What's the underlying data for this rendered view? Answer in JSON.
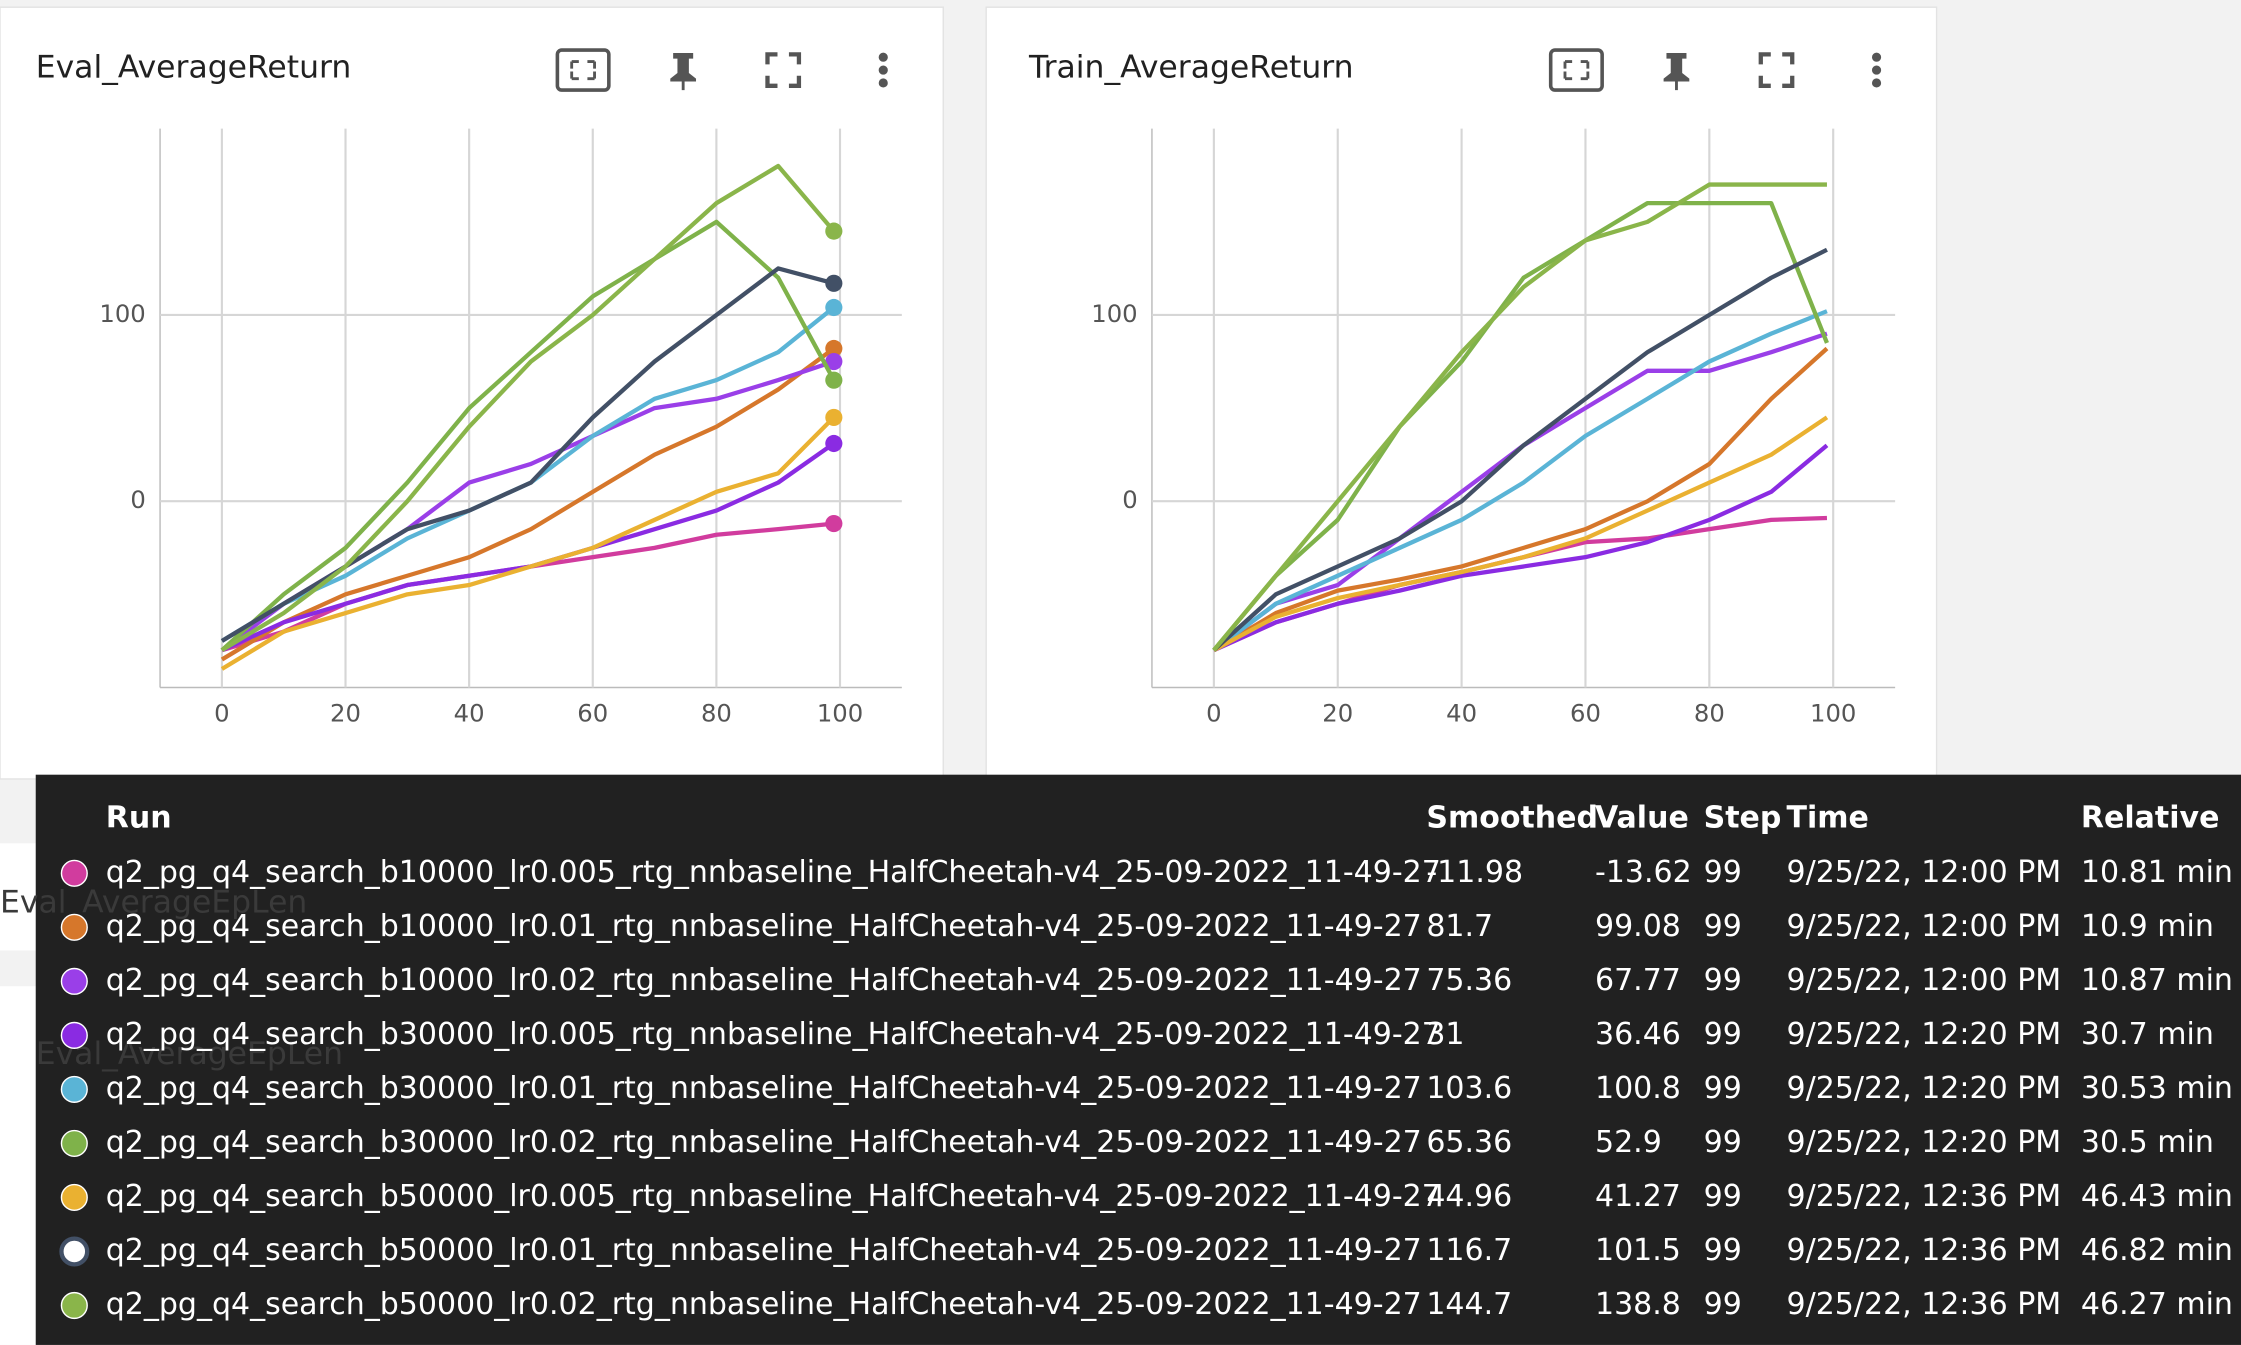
{
  "chart_data": [
    {
      "type": "line",
      "title": "Eval_AverageReturn",
      "x": [
        0,
        10,
        20,
        30,
        40,
        50,
        60,
        70,
        80,
        90,
        99
      ],
      "xlim": [
        -10,
        110
      ],
      "xticks": [
        0,
        20,
        40,
        60,
        80,
        100
      ],
      "ylim": [
        -100,
        200
      ],
      "yticks": [
        0,
        100
      ],
      "grid": true,
      "end_markers": true,
      "series": [
        {
          "name": "q2_pg_q4_search_b10000_lr0.005_rtg_nnbaseline_HalfCheetah-v4_25-09-2022_11-49-27",
          "color": "#d13c9e",
          "values": [
            -80,
            -70,
            -55,
            -45,
            -40,
            -35,
            -30,
            -25,
            -18,
            -15,
            -12
          ]
        },
        {
          "name": "q2_pg_q4_search_b10000_lr0.01_rtg_nnbaseline_HalfCheetah-v4_25-09-2022_11-49-27",
          "color": "#d6772b",
          "values": [
            -85,
            -65,
            -50,
            -40,
            -30,
            -15,
            5,
            25,
            40,
            60,
            82
          ]
        },
        {
          "name": "q2_pg_q4_search_b10000_lr0.02_rtg_nnbaseline_HalfCheetah-v4_25-09-2022_11-49-27",
          "color": "#9a3fe8",
          "values": [
            -80,
            -55,
            -35,
            -15,
            10,
            20,
            35,
            50,
            55,
            65,
            75
          ]
        },
        {
          "name": "q2_pg_q4_search_b30000_lr0.005_rtg_nnbaseline_HalfCheetah-v4_25-09-2022_11-49-27",
          "color": "#8a2be2",
          "values": [
            -80,
            -65,
            -55,
            -45,
            -40,
            -35,
            -25,
            -15,
            -5,
            10,
            31
          ]
        },
        {
          "name": "q2_pg_q4_search_b30000_lr0.01_rtg_nnbaseline_HalfCheetah-v4_25-09-2022_11-49-27",
          "color": "#5ab4d6",
          "values": [
            -75,
            -55,
            -40,
            -20,
            -5,
            10,
            35,
            55,
            65,
            80,
            104
          ]
        },
        {
          "name": "q2_pg_q4_search_b30000_lr0.02_rtg_nnbaseline_HalfCheetah-v4_25-09-2022_11-49-27",
          "color": "#7fb24a",
          "values": [
            -80,
            -50,
            -25,
            10,
            50,
            80,
            110,
            130,
            150,
            120,
            65
          ]
        },
        {
          "name": "q2_pg_q4_search_b50000_lr0.005_rtg_nnbaseline_HalfCheetah-v4_25-09-2022_11-49-27",
          "color": "#eab131",
          "values": [
            -90,
            -70,
            -60,
            -50,
            -45,
            -35,
            -25,
            -10,
            5,
            15,
            45
          ]
        },
        {
          "name": "q2_pg_q4_search_b50000_lr0.01_rtg_nnbaseline_HalfCheetah-v4_25-09-2022_11-49-27",
          "color": "#425066",
          "values": [
            -75,
            -55,
            -35,
            -15,
            -5,
            10,
            45,
            75,
            100,
            125,
            117
          ]
        },
        {
          "name": "q2_pg_q4_search_b50000_lr0.02_rtg_nnbaseline_HalfCheetah-v4_25-09-2022_11-49-27",
          "color": "#8ab54a",
          "values": [
            -80,
            -60,
            -35,
            0,
            40,
            75,
            100,
            130,
            160,
            180,
            145
          ]
        }
      ]
    },
    {
      "type": "line",
      "title": "Train_AverageReturn",
      "x": [
        0,
        10,
        20,
        30,
        40,
        50,
        60,
        70,
        80,
        90,
        99
      ],
      "xlim": [
        -10,
        110
      ],
      "xticks": [
        0,
        20,
        40,
        60,
        80,
        100
      ],
      "ylim": [
        -100,
        200
      ],
      "yticks": [
        0,
        100
      ],
      "grid": true,
      "end_markers": false,
      "series": [
        {
          "name": "q2_pg_q4_search_b10000_lr0.005_rtg_nnbaseline_HalfCheetah-v4_25-09-2022_11-49-27",
          "color": "#d13c9e",
          "values": [
            -80,
            -65,
            -55,
            -45,
            -38,
            -30,
            -22,
            -20,
            -15,
            -10,
            -9
          ]
        },
        {
          "name": "q2_pg_q4_search_b10000_lr0.01_rtg_nnbaseline_HalfCheetah-v4_25-09-2022_11-49-27",
          "color": "#d6772b",
          "values": [
            -80,
            -60,
            -48,
            -42,
            -35,
            -25,
            -15,
            0,
            20,
            55,
            82
          ]
        },
        {
          "name": "q2_pg_q4_search_b10000_lr0.02_rtg_nnbaseline_HalfCheetah-v4_25-09-2022_11-49-27",
          "color": "#9a3fe8",
          "values": [
            -80,
            -55,
            -45,
            -20,
            5,
            30,
            50,
            70,
            70,
            80,
            90
          ]
        },
        {
          "name": "q2_pg_q4_search_b30000_lr0.005_rtg_nnbaseline_HalfCheetah-v4_25-09-2022_11-49-27",
          "color": "#8a2be2",
          "values": [
            -80,
            -65,
            -55,
            -48,
            -40,
            -35,
            -30,
            -22,
            -10,
            5,
            30
          ]
        },
        {
          "name": "q2_pg_q4_search_b30000_lr0.01_rtg_nnbaseline_HalfCheetah-v4_25-09-2022_11-49-27",
          "color": "#5ab4d6",
          "values": [
            -80,
            -55,
            -40,
            -25,
            -10,
            10,
            35,
            55,
            75,
            90,
            102
          ]
        },
        {
          "name": "q2_pg_q4_search_b30000_lr0.02_rtg_nnbaseline_HalfCheetah-v4_25-09-2022_11-49-27",
          "color": "#7fb24a",
          "values": [
            -80,
            -40,
            -10,
            40,
            75,
            120,
            140,
            160,
            160,
            160,
            85
          ]
        },
        {
          "name": "q2_pg_q4_search_b50000_lr0.005_rtg_nnbaseline_HalfCheetah-v4_25-09-2022_11-49-27",
          "color": "#eab131",
          "values": [
            -80,
            -62,
            -52,
            -45,
            -38,
            -30,
            -20,
            -5,
            10,
            25,
            45
          ]
        },
        {
          "name": "q2_pg_q4_search_b50000_lr0.01_rtg_nnbaseline_HalfCheetah-v4_25-09-2022_11-49-27",
          "color": "#425066",
          "values": [
            -80,
            -50,
            -35,
            -20,
            0,
            30,
            55,
            80,
            100,
            120,
            135
          ]
        },
        {
          "name": "q2_pg_q4_search_b50000_lr0.02_rtg_nnbaseline_HalfCheetah-v4_25-09-2022_11-49-27",
          "color": "#8ab54a",
          "values": [
            -80,
            -40,
            0,
            40,
            80,
            115,
            140,
            150,
            170,
            170,
            170
          ]
        }
      ]
    }
  ],
  "background_cards": [
    "Eval_AverageEpLen",
    "Eval_AverageEpLen"
  ],
  "tooltip": {
    "columns": [
      "Run",
      "Smoothed",
      "Value",
      "Step",
      "Time",
      "Relative"
    ],
    "rows": [
      [
        "q2_pg_q4_search_b10000_lr0.005_rtg_nnbaseline_HalfCheetah-v4_25-09-2022_11-49-27",
        -11.98,
        -13.62,
        99,
        "9/25/22, 12:00 PM",
        "10.81 min"
      ],
      [
        "q2_pg_q4_search_b10000_lr0.01_rtg_nnbaseline_HalfCheetah-v4_25-09-2022_11-49-27",
        81.7,
        99.08,
        99,
        "9/25/22, 12:00 PM",
        "10.9 min"
      ],
      [
        "q2_pg_q4_search_b10000_lr0.02_rtg_nnbaseline_HalfCheetah-v4_25-09-2022_11-49-27",
        75.36,
        67.77,
        99,
        "9/25/22, 12:00 PM",
        "10.87 min"
      ],
      [
        "q2_pg_q4_search_b30000_lr0.005_rtg_nnbaseline_HalfCheetah-v4_25-09-2022_11-49-27",
        31,
        36.46,
        99,
        "9/25/22, 12:20 PM",
        "30.7 min"
      ],
      [
        "q2_pg_q4_search_b30000_lr0.01_rtg_nnbaseline_HalfCheetah-v4_25-09-2022_11-49-27",
        103.6,
        100.8,
        99,
        "9/25/22, 12:20 PM",
        "30.53 min"
      ],
      [
        "q2_pg_q4_search_b30000_lr0.02_rtg_nnbaseline_HalfCheetah-v4_25-09-2022_11-49-27",
        65.36,
        52.9,
        99,
        "9/25/22, 12:20 PM",
        "30.5 min"
      ],
      [
        "q2_pg_q4_search_b50000_lr0.005_rtg_nnbaseline_HalfCheetah-v4_25-09-2022_11-49-27",
        44.96,
        41.27,
        99,
        "9/25/22, 12:36 PM",
        "46.43 min"
      ],
      [
        "q2_pg_q4_search_b50000_lr0.01_rtg_nnbaseline_HalfCheetah-v4_25-09-2022_11-49-27",
        116.7,
        101.5,
        99,
        "9/25/22, 12:36 PM",
        "46.82 min"
      ],
      [
        "q2_pg_q4_search_b50000_lr0.02_rtg_nnbaseline_HalfCheetah-v4_25-09-2022_11-49-27",
        144.7,
        138.8,
        99,
        "9/25/22, 12:36 PM",
        "46.27 min"
      ]
    ]
  }
}
